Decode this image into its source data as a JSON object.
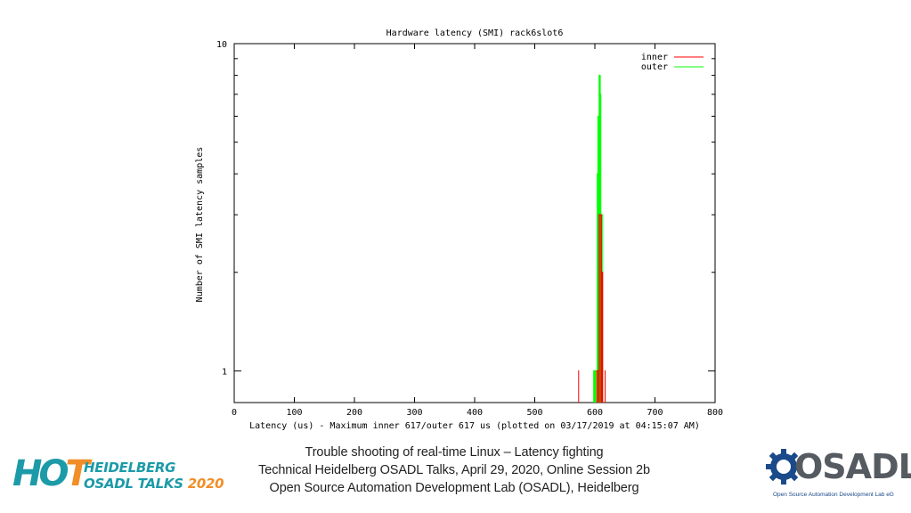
{
  "chart_data": {
    "type": "line",
    "title": "Hardware latency (SMI) rack6slot6",
    "xlabel": "Latency (us) - Maximum inner 617/outer 617 us (plotted on 03/17/2019 at 04:15:07 AM)",
    "ylabel": "Number of SMI latency samples",
    "xlim": [
      0,
      800
    ],
    "ylim": [
      0.8,
      10
    ],
    "yscale": "log",
    "xticks": [
      "0",
      "100",
      "200",
      "300",
      "400",
      "500",
      "600",
      "700",
      "800"
    ],
    "yticks": [
      "1",
      "10"
    ],
    "legend_position": "top-right",
    "grid": false,
    "series": [
      {
        "name": "inner",
        "color": "#ff0000",
        "points": [
          [
            573,
            1
          ],
          [
            603,
            1
          ],
          [
            605,
            1
          ],
          [
            607,
            3
          ],
          [
            609,
            3
          ],
          [
            611,
            2
          ],
          [
            612,
            2
          ],
          [
            613,
            1
          ],
          [
            617,
            1
          ]
        ]
      },
      {
        "name": "outer",
        "color": "#00ff00",
        "points": [
          [
            598,
            1
          ],
          [
            599,
            1
          ],
          [
            600,
            1
          ],
          [
            601,
            1
          ],
          [
            603,
            1
          ],
          [
            604,
            4
          ],
          [
            605,
            6
          ],
          [
            606,
            5
          ],
          [
            607,
            8
          ],
          [
            608,
            8
          ],
          [
            609,
            7
          ],
          [
            610,
            3
          ],
          [
            611,
            3
          ],
          [
            613,
            1
          ],
          [
            617,
            1
          ]
        ]
      }
    ]
  },
  "caption": {
    "line1": "Trouble shooting of real-time Linux – Latency fighting",
    "line2": "Technical Heidelberg OSADL Talks, April 29, 2020, Online Session 2b",
    "line3": "Open Source Automation Development Lab (OSADL), Heidelberg"
  },
  "hot_logo": {
    "mark_ho": "HO",
    "mark_t": "T",
    "line1": "HEIDELBERG",
    "line2": "OSADL TALKS",
    "year": "2020",
    "color_teal": "#1c9aa8",
    "color_orange": "#f18e28"
  },
  "osadl_logo": {
    "word": "OSADL",
    "subtitle": "Open Source Automation Development Lab eG",
    "color_gray": "#555b60",
    "color_blue": "#1a4a8a"
  }
}
